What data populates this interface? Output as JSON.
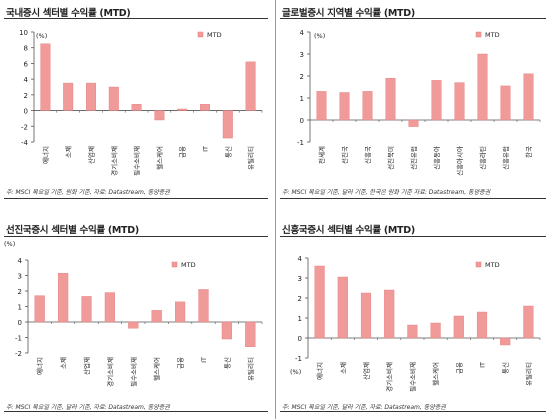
{
  "colors": {
    "bar": "#f09a9a",
    "bar_stroke": "#e37e7e",
    "axis": "#555555",
    "text": "#222222"
  },
  "charts": [
    {
      "title": "국내증시 섹터별 수익률 (MTD)",
      "unit": "(%)",
      "legend": "MTD",
      "note": "주: MSCI 목요일 기준, 원화 기준, 자료: Datastream, 동양증권"
    },
    {
      "title": "글로벌증시 지역별 수익률 (MTD)",
      "unit": "(%)",
      "legend": "MTD",
      "note": "주: MSCI 목요일 기준, 달러 기준, 한국은 원화 기준 자료: Datastream, 동양증권"
    },
    {
      "title": "선진국증시 섹터별 수익률 (MTD)",
      "unit": "(%)",
      "legend": "MTD",
      "note": "주: MSCI 목요일 기준, 달러 기준, 자료: Datastream, 동양증권"
    },
    {
      "title": "신흥국증시 섹터별 수익률 (MTD)",
      "unit": "(%)",
      "legend": "MTD",
      "note": "주: MSCI 목요일 기준, 달러 기준, 자료: Datastream, 동양증권"
    }
  ],
  "chart_data": [
    {
      "type": "bar",
      "title": "국내증시 섹터별 수익률 (MTD)",
      "ylabel": "(%)",
      "ylim": [
        -4,
        10
      ],
      "yticks": [
        -4,
        -2,
        0,
        2,
        4,
        6,
        8,
        10
      ],
      "categories": [
        "에너지",
        "소재",
        "산업재",
        "경기소비재",
        "필수소비재",
        "헬스케어",
        "금융",
        "IT",
        "통신",
        "유틸리티"
      ],
      "series": [
        {
          "name": "MTD",
          "values": [
            8.5,
            3.5,
            3.5,
            3.0,
            0.8,
            -1.2,
            0.2,
            0.8,
            -3.5,
            6.2
          ]
        }
      ],
      "legend": "top-right"
    },
    {
      "type": "bar",
      "title": "글로벌증시 지역별 수익률 (MTD)",
      "ylabel": "(%)",
      "ylim": [
        -1,
        4
      ],
      "yticks": [
        -1,
        0,
        1,
        2,
        3,
        4
      ],
      "categories": [
        "전세계",
        "선진국",
        "신흥국",
        "선진북미",
        "선진유럽",
        "신흥동아",
        "신흥아시아",
        "신흥라틴",
        "신흥유럽",
        "한국"
      ],
      "series": [
        {
          "name": "MTD",
          "values": [
            1.3,
            1.25,
            1.3,
            1.9,
            -0.3,
            1.8,
            1.7,
            3.0,
            1.55,
            2.1
          ]
        }
      ],
      "legend": "top-right"
    },
    {
      "type": "bar",
      "title": "선진국증시 섹터별 수익률 (MTD)",
      "ylabel": "(%)",
      "ylim": [
        -2,
        4
      ],
      "yticks": [
        -2,
        -1,
        0,
        1,
        2,
        3,
        4
      ],
      "categories": [
        "에너지",
        "소재",
        "산업재",
        "경기소비재",
        "필수소비재",
        "헬스케어",
        "금융",
        "IT",
        "통신",
        "유틸리티"
      ],
      "series": [
        {
          "name": "MTD",
          "values": [
            1.7,
            3.15,
            1.65,
            1.9,
            -0.4,
            0.75,
            1.3,
            2.1,
            -1.1,
            -1.6
          ]
        }
      ],
      "legend": "top-right"
    },
    {
      "type": "bar",
      "title": "신흥국증시 섹터별 수익률 (MTD)",
      "ylabel": "(%)",
      "ylim": [
        -1,
        4
      ],
      "yticks": [
        -1,
        0,
        1,
        2,
        3,
        4
      ],
      "categories": [
        "에너지",
        "소재",
        "산업재",
        "경기소비재",
        "필수소비재",
        "헬스케어",
        "금융",
        "IT",
        "통신",
        "유틸리티"
      ],
      "series": [
        {
          "name": "MTD",
          "values": [
            3.6,
            3.05,
            2.25,
            2.4,
            0.65,
            0.75,
            1.1,
            1.3,
            -0.35,
            1.6
          ]
        }
      ],
      "legend": "top-right"
    }
  ]
}
